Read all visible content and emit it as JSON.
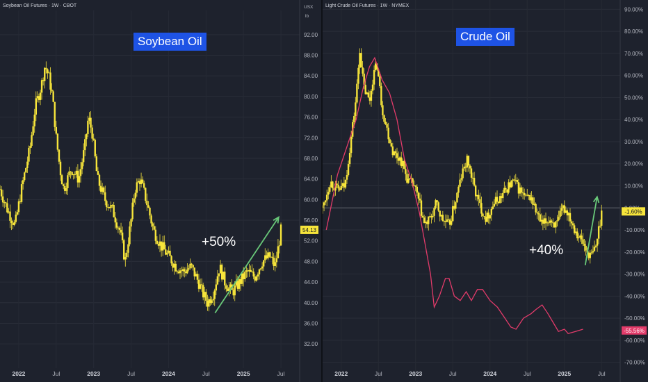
{
  "chart_data": [
    {
      "type": "line",
      "header": "Soybean Oil Futures · 1W · CBOT",
      "badge": "Soybean Oil",
      "units": [
        "USX",
        "lb"
      ],
      "price_label": "54.13",
      "annotation": "+50%",
      "yticks": [
        "92.00",
        "88.00",
        "84.00",
        "80.00",
        "76.00",
        "72.00",
        "68.00",
        "64.00",
        "60.00",
        "56.00",
        "52.00",
        "48.00",
        "44.00",
        "40.00",
        "36.00",
        "32.00"
      ],
      "ylim": [
        30,
        94
      ],
      "xticks": [
        {
          "label": "2022",
          "bold": true
        },
        {
          "label": "Jul",
          "bold": false
        },
        {
          "label": "2023",
          "bold": true
        },
        {
          "label": "Jul",
          "bold": false
        },
        {
          "label": "2024",
          "bold": true
        },
        {
          "label": "Jul",
          "bold": false
        },
        {
          "label": "2025",
          "bold": true
        },
        {
          "label": "Jul",
          "bold": false
        }
      ],
      "xlim": [
        2021.75,
        2025.75
      ],
      "series": [
        {
          "values": [
            [
              2021.75,
              62
            ],
            [
              2021.85,
              58
            ],
            [
              2021.95,
              55
            ],
            [
              2022.05,
              63
            ],
            [
              2022.15,
              70
            ],
            [
              2022.22,
              78
            ],
            [
              2022.3,
              82
            ],
            [
              2022.35,
              86
            ],
            [
              2022.4,
              84
            ],
            [
              2022.45,
              80
            ],
            [
              2022.5,
              72
            ],
            [
              2022.55,
              66
            ],
            [
              2022.6,
              62
            ],
            [
              2022.7,
              66
            ],
            [
              2022.8,
              64
            ],
            [
              2022.88,
              70
            ],
            [
              2022.93,
              76
            ],
            [
              2022.98,
              73
            ],
            [
              2023.05,
              64
            ],
            [
              2023.15,
              60
            ],
            [
              2023.25,
              58
            ],
            [
              2023.35,
              54
            ],
            [
              2023.42,
              48
            ],
            [
              2023.5,
              56
            ],
            [
              2023.55,
              62
            ],
            [
              2023.62,
              64
            ],
            [
              2023.7,
              60
            ],
            [
              2023.8,
              54
            ],
            [
              2023.9,
              51
            ],
            [
              2024.0,
              49
            ],
            [
              2024.1,
              47
            ],
            [
              2024.2,
              46
            ],
            [
              2024.3,
              47
            ],
            [
              2024.4,
              44
            ],
            [
              2024.45,
              42
            ],
            [
              2024.52,
              40
            ],
            [
              2024.6,
              42
            ],
            [
              2024.68,
              47
            ],
            [
              2024.75,
              44
            ],
            [
              2024.85,
              42
            ],
            [
              2024.95,
              44
            ],
            [
              2025.05,
              46
            ],
            [
              2025.15,
              45
            ],
            [
              2025.25,
              48
            ],
            [
              2025.35,
              49
            ],
            [
              2025.42,
              47
            ],
            [
              2025.48,
              52
            ],
            [
              2025.5,
              54
            ]
          ]
        }
      ],
      "arrow": {
        "from": [
          2024.62,
          38.0
        ],
        "to": [
          2025.47,
          56.6
        ]
      }
    },
    {
      "type": "line",
      "header": "Light Crude Oil Futures · 1W · NYMEX",
      "badge": "Crude Oil",
      "price_label": "-1.60%",
      "pct_label": "-55.56%",
      "annotation": "+40%",
      "yticks": [
        "90.00%",
        "80.00%",
        "70.00%",
        "60.00%",
        "50.00%",
        "40.00%",
        "30.00%",
        "20.00%",
        "10.00%",
        "0.00%",
        "-10.00%",
        "-20.00%",
        "-30.00%",
        "-40.00%",
        "-50.00%",
        "-60.00%",
        "-70.00%"
      ],
      "ylim": [
        -72,
        92
      ],
      "xticks": [
        {
          "label": "2022",
          "bold": true
        },
        {
          "label": "Jul",
          "bold": false
        },
        {
          "label": "2023",
          "bold": true
        },
        {
          "label": "Jul",
          "bold": false
        },
        {
          "label": "2024",
          "bold": true
        },
        {
          "label": "Jul",
          "bold": false
        },
        {
          "label": "2025",
          "bold": true
        },
        {
          "label": "Jul",
          "bold": false
        }
      ],
      "xlim": [
        2021.75,
        2025.75
      ],
      "series": [
        {
          "values": [
            [
              2021.75,
              0
            ],
            [
              2021.85,
              12
            ],
            [
              2021.95,
              8
            ],
            [
              2022.05,
              10
            ],
            [
              2022.12,
              28
            ],
            [
              2022.2,
              50
            ],
            [
              2022.25,
              72
            ],
            [
              2022.3,
              55
            ],
            [
              2022.38,
              48
            ],
            [
              2022.43,
              60
            ],
            [
              2022.48,
              65
            ],
            [
              2022.55,
              45
            ],
            [
              2022.62,
              35
            ],
            [
              2022.7,
              25
            ],
            [
              2022.8,
              22
            ],
            [
              2022.9,
              12
            ],
            [
              2022.98,
              10
            ],
            [
              2023.05,
              2
            ],
            [
              2023.12,
              -8
            ],
            [
              2023.2,
              -5
            ],
            [
              2023.28,
              2
            ],
            [
              2023.35,
              -5
            ],
            [
              2023.45,
              -8
            ],
            [
              2023.55,
              5
            ],
            [
              2023.62,
              15
            ],
            [
              2023.7,
              22
            ],
            [
              2023.78,
              10
            ],
            [
              2023.85,
              2
            ],
            [
              2023.95,
              -5
            ],
            [
              2024.05,
              2
            ],
            [
              2024.15,
              5
            ],
            [
              2024.25,
              10
            ],
            [
              2024.32,
              12
            ],
            [
              2024.4,
              8
            ],
            [
              2024.48,
              4
            ],
            [
              2024.55,
              5
            ],
            [
              2024.62,
              -2
            ],
            [
              2024.7,
              -8
            ],
            [
              2024.8,
              -5
            ],
            [
              2024.9,
              -8
            ],
            [
              2024.98,
              0
            ],
            [
              2025.05,
              -2
            ],
            [
              2025.12,
              -8
            ],
            [
              2025.18,
              -12
            ],
            [
              2025.25,
              -16
            ],
            [
              2025.3,
              -20
            ],
            [
              2025.36,
              -22
            ],
            [
              2025.42,
              -18
            ],
            [
              2025.46,
              -10
            ],
            [
              2025.5,
              -2
            ]
          ]
        },
        {
          "values": [
            [
              2021.8,
              -10
            ],
            [
              2021.95,
              15
            ],
            [
              2022.1,
              30
            ],
            [
              2022.2,
              40
            ],
            [
              2022.3,
              55
            ],
            [
              2022.38,
              64
            ],
            [
              2022.45,
              68
            ],
            [
              2022.55,
              58
            ],
            [
              2022.65,
              52
            ],
            [
              2022.75,
              40
            ],
            [
              2022.85,
              22
            ],
            [
              2022.95,
              12
            ],
            [
              2023.05,
              -2
            ],
            [
              2023.12,
              -15
            ],
            [
              2023.2,
              -30
            ],
            [
              2023.25,
              -45
            ],
            [
              2023.32,
              -40
            ],
            [
              2023.4,
              -32
            ],
            [
              2023.45,
              -32
            ],
            [
              2023.52,
              -40
            ],
            [
              2023.6,
              -42
            ],
            [
              2023.68,
              -38
            ],
            [
              2023.75,
              -42
            ],
            [
              2023.83,
              -37
            ],
            [
              2023.9,
              -37
            ],
            [
              2024.0,
              -42
            ],
            [
              2024.1,
              -45
            ],
            [
              2024.2,
              -50
            ],
            [
              2024.28,
              -54
            ],
            [
              2024.35,
              -55
            ],
            [
              2024.45,
              -50
            ],
            [
              2024.55,
              -48
            ],
            [
              2024.62,
              -46
            ],
            [
              2024.7,
              -44
            ],
            [
              2024.78,
              -48
            ],
            [
              2024.85,
              -52
            ],
            [
              2024.92,
              -56
            ],
            [
              2025.0,
              -55
            ],
            [
              2025.05,
              -57
            ],
            [
              2025.15,
              -56
            ],
            [
              2025.25,
              -55
            ]
          ]
        }
      ],
      "arrow": {
        "from": [
          2025.28,
          -26
        ],
        "to": [
          2025.44,
          5
        ]
      }
    }
  ],
  "colors": {
    "background": "#1e222d",
    "price": "#f7e53b",
    "compare": "#e23b6a",
    "arrow": "#69c879",
    "badge": "#1e53e5"
  }
}
